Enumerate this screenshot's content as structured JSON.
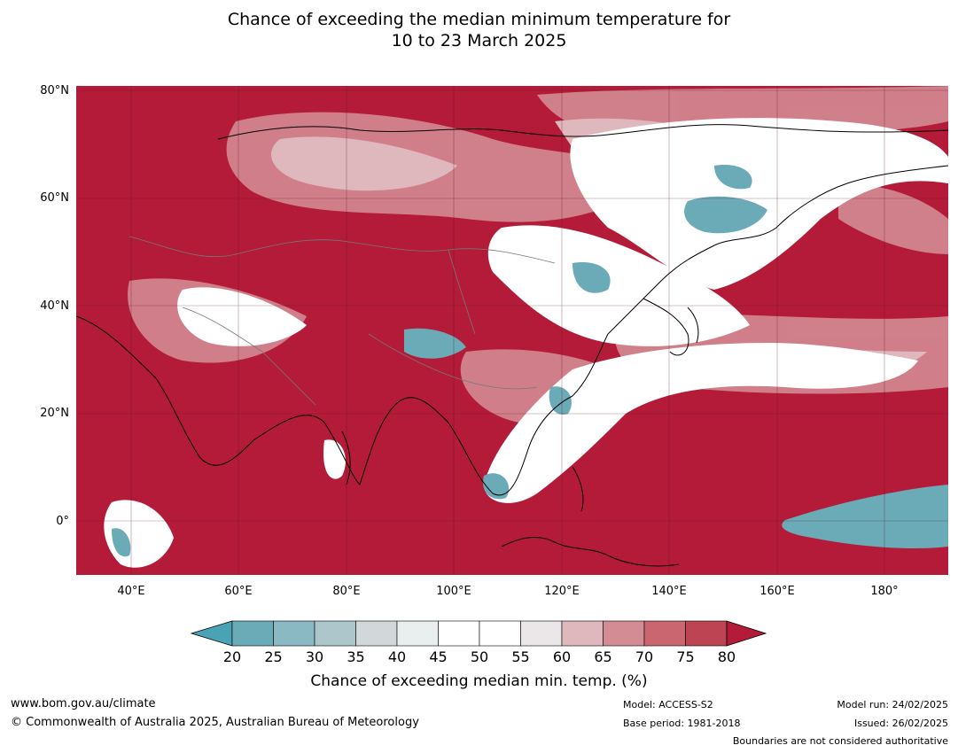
{
  "title_line1": "Chance of exceeding the median minimum temperature for",
  "title_line2": "10 to 23 March 2025",
  "lat_labels": [
    "80°N",
    "60°N",
    "40°N",
    "20°N",
    "0°"
  ],
  "lon_labels": [
    "40°E",
    "60°E",
    "80°E",
    "100°E",
    "120°E",
    "140°E",
    "160°E",
    "180°"
  ],
  "colorbar": {
    "ticks": [
      "20",
      "25",
      "30",
      "35",
      "40",
      "45",
      "50",
      "55",
      "60",
      "65",
      "70",
      "75",
      "80"
    ],
    "colors": [
      "#4aa3b5",
      "#6aabb7",
      "#8ab8c3",
      "#adc6cc",
      "#d2d8da",
      "#e9eeef",
      "#ffffff",
      "#ffffff",
      "#ebe6e7",
      "#dfb8bd",
      "#d38b94",
      "#c96670",
      "#bd4453",
      "#b41b38"
    ],
    "label": "Chance of exceeding median min. temp. (%)"
  },
  "footer": {
    "url": "www.bom.gov.au/climate",
    "copyright": "© Commonwealth of Australia 2025, Australian Bureau of Meteorology",
    "model": "Model: ACCESS-S2",
    "base_period": "Base period: 1981-2018",
    "model_run": "Model run: 24/02/2025",
    "issued": "Issued: 26/02/2025",
    "disclaimer": "Boundaries are not considered authoritative"
  },
  "colors": {
    "high": "#b41b38",
    "mid_high": "#d38b94",
    "neutral": "#ffffff",
    "low": "#4aa3b5"
  }
}
